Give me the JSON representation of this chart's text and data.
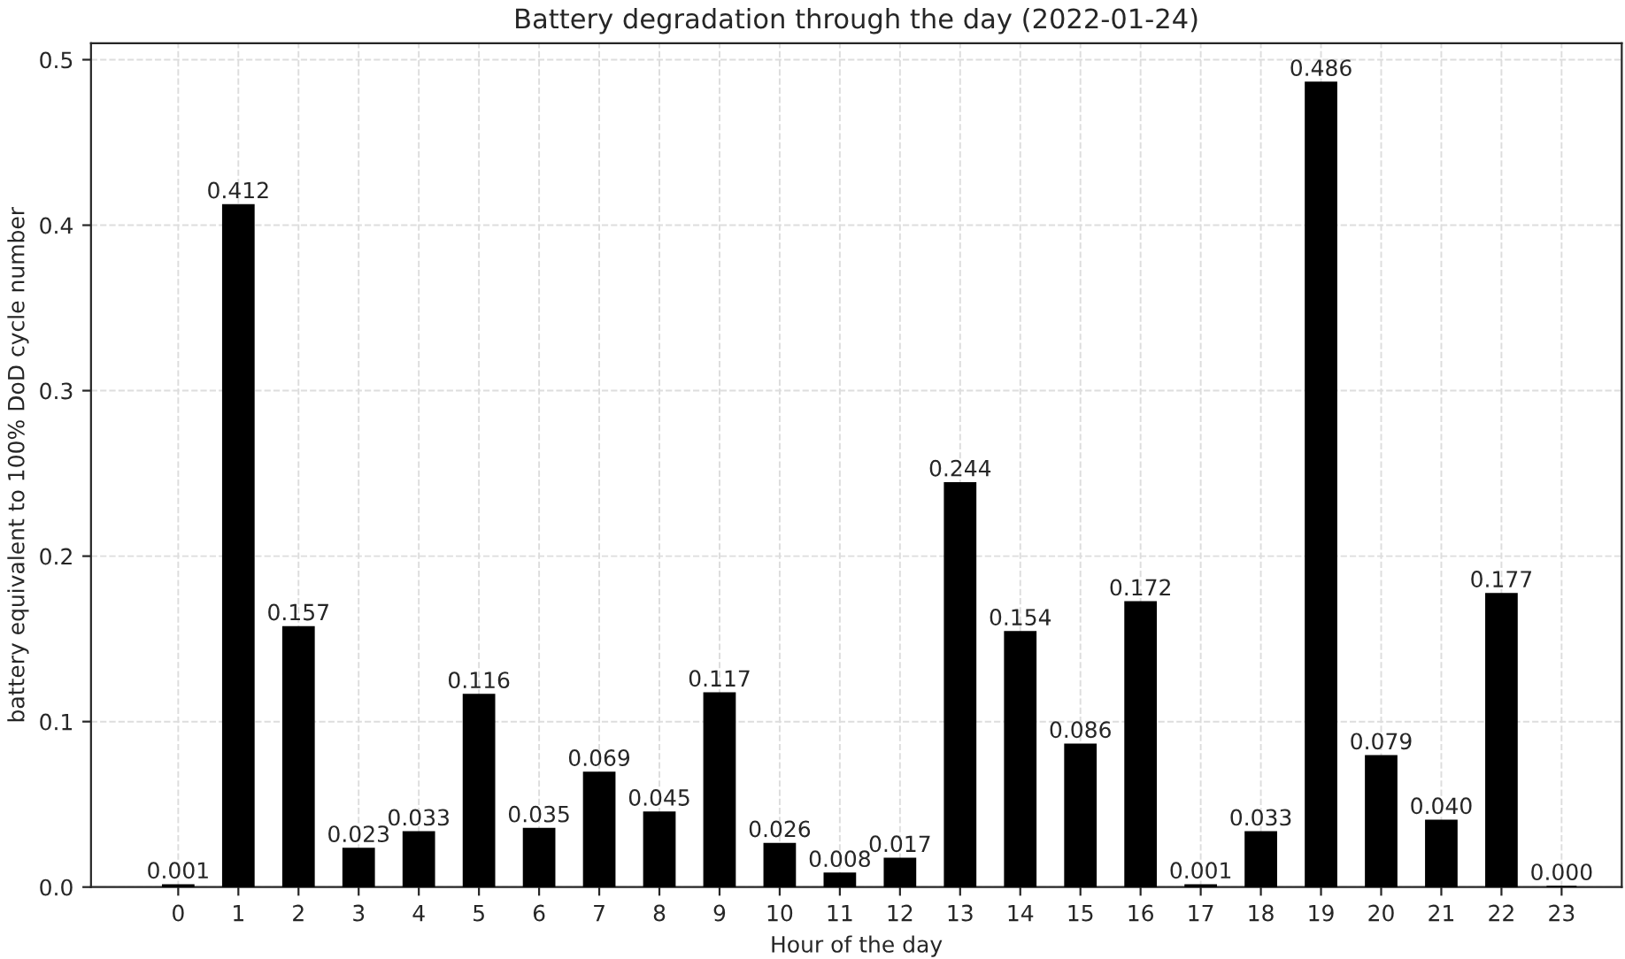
{
  "chart_data": {
    "type": "bar",
    "title": "Battery degradation through the day (2022-01-24)",
    "xlabel": "Hour of the day",
    "ylabel": "battery equivalent to 100% DoD cycle number",
    "x": [
      0,
      1,
      2,
      3,
      4,
      5,
      6,
      7,
      8,
      9,
      10,
      11,
      12,
      13,
      14,
      15,
      16,
      17,
      18,
      19,
      20,
      21,
      22,
      23
    ],
    "values": [
      0.001,
      0.412,
      0.157,
      0.023,
      0.033,
      0.116,
      0.035,
      0.069,
      0.045,
      0.117,
      0.026,
      0.008,
      0.017,
      0.244,
      0.154,
      0.086,
      0.172,
      0.001,
      0.033,
      0.486,
      0.079,
      0.04,
      0.177,
      0
    ],
    "value_labels": [
      "0.001",
      "0.412",
      "0.157",
      "0.023",
      "0.033",
      "0.116",
      "0.035",
      "0.069",
      "0.045",
      "0.117",
      "0.026",
      "0.008",
      "0.017",
      "0.244",
      "0.154",
      "0.086",
      "0.172",
      "0.001",
      "0.033",
      "0.486",
      "0.079",
      "0.040",
      "0.177",
      "0.000"
    ],
    "color": "#000000",
    "xlim": [
      -1.45,
      24
    ],
    "xticks": [
      0,
      1,
      2,
      3,
      4,
      5,
      6,
      7,
      8,
      9,
      10,
      11,
      12,
      13,
      14,
      15,
      16,
      17,
      18,
      19,
      20,
      21,
      22,
      23
    ],
    "ylim": [
      0,
      0.51
    ],
    "yticks": [
      {
        "value": 0,
        "label": "0.0"
      },
      {
        "value": 0.1,
        "label": "0.1"
      },
      {
        "value": 0.2,
        "label": "0.2"
      },
      {
        "value": 0.3,
        "label": "0.3"
      },
      {
        "value": 0.4,
        "label": "0.4"
      },
      {
        "value": 0.5,
        "label": "0.5"
      }
    ],
    "grid": true
  }
}
